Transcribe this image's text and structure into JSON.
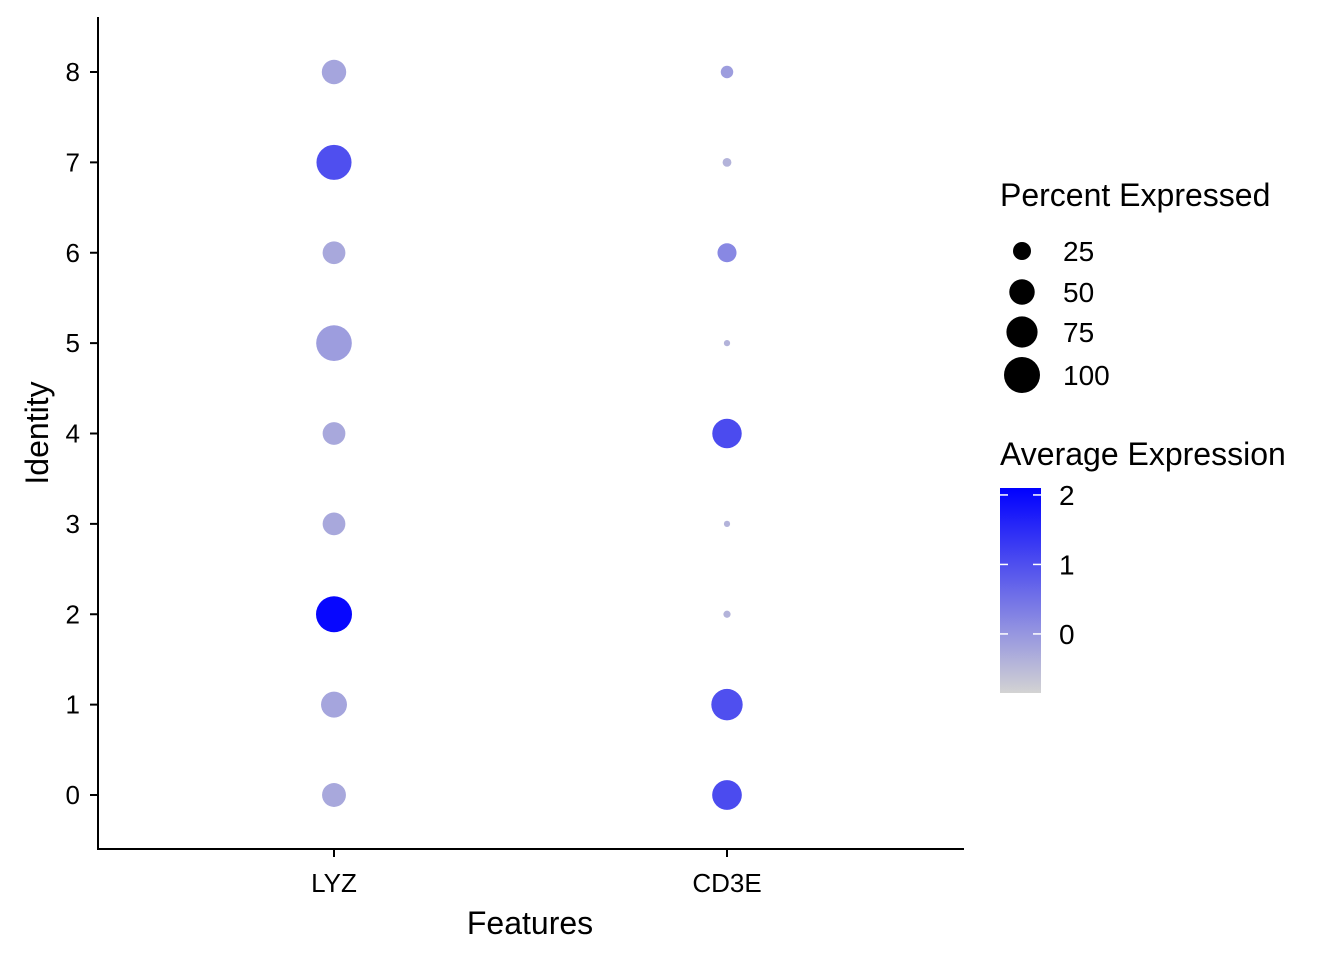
{
  "chart_data": {
    "type": "scatter",
    "subtype": "dot-plot",
    "xlabel": "Features",
    "ylabel": "Identity",
    "categories": [
      "LYZ",
      "CD3E"
    ],
    "identities": [
      "0",
      "1",
      "2",
      "3",
      "4",
      "5",
      "6",
      "7",
      "8"
    ],
    "points": [
      {
        "feature": "LYZ",
        "identity": "0",
        "pct_exp": 44,
        "avg_exp": -0.25
      },
      {
        "feature": "LYZ",
        "identity": "1",
        "pct_exp": 52,
        "avg_exp": -0.2
      },
      {
        "feature": "LYZ",
        "identity": "2",
        "pct_exp": 100,
        "avg_exp": 2.0
      },
      {
        "feature": "LYZ",
        "identity": "3",
        "pct_exp": 40,
        "avg_exp": -0.25
      },
      {
        "feature": "LYZ",
        "identity": "4",
        "pct_exp": 40,
        "avg_exp": -0.25
      },
      {
        "feature": "LYZ",
        "identity": "5",
        "pct_exp": 98,
        "avg_exp": -0.1
      },
      {
        "feature": "LYZ",
        "identity": "6",
        "pct_exp": 40,
        "avg_exp": -0.25
      },
      {
        "feature": "LYZ",
        "identity": "7",
        "pct_exp": 95,
        "avg_exp": 1.0
      },
      {
        "feature": "LYZ",
        "identity": "8",
        "pct_exp": 46,
        "avg_exp": -0.2
      },
      {
        "feature": "CD3E",
        "identity": "0",
        "pct_exp": 68,
        "avg_exp": 1.05
      },
      {
        "feature": "CD3E",
        "identity": "1",
        "pct_exp": 76,
        "avg_exp": 1.0
      },
      {
        "feature": "CD3E",
        "identity": "2",
        "pct_exp": 4,
        "avg_exp": -0.4
      },
      {
        "feature": "CD3E",
        "identity": "3",
        "pct_exp": 3,
        "avg_exp": -0.4
      },
      {
        "feature": "CD3E",
        "identity": "4",
        "pct_exp": 67,
        "avg_exp": 1.05
      },
      {
        "feature": "CD3E",
        "identity": "5",
        "pct_exp": 3,
        "avg_exp": -0.4
      },
      {
        "feature": "CD3E",
        "identity": "6",
        "pct_exp": 28,
        "avg_exp": 0.2
      },
      {
        "feature": "CD3E",
        "identity": "7",
        "pct_exp": 6,
        "avg_exp": -0.4
      },
      {
        "feature": "CD3E",
        "identity": "8",
        "pct_exp": 12,
        "avg_exp": -0.1
      }
    ],
    "size_legend": {
      "title": "Percent Expressed",
      "breaks": [
        25,
        50,
        75,
        100
      ],
      "labels": [
        "25",
        "50",
        "75",
        "100"
      ]
    },
    "color_legend": {
      "title": "Average Expression",
      "min": -0.85,
      "max": 2.1,
      "breaks": [
        0,
        1,
        2
      ],
      "labels": [
        "0",
        "1",
        "2"
      ],
      "low_color": "#d3d3d3",
      "high_color": "#0000ff"
    },
    "grid": false,
    "legend_position": "right"
  }
}
